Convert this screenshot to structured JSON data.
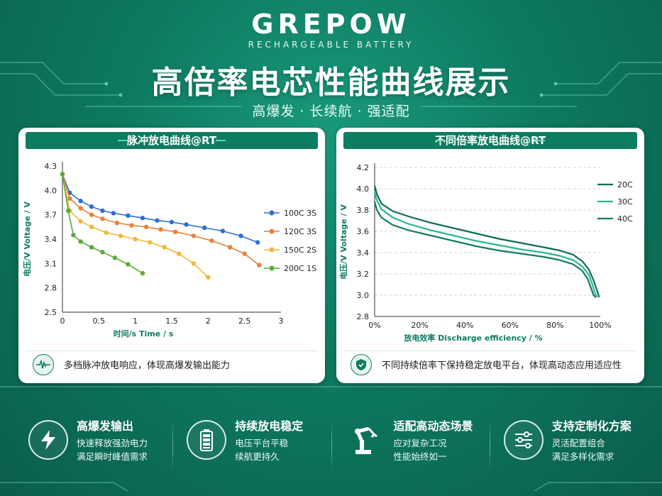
{
  "brand": {
    "name": "GREPOW",
    "tagline": "RECHARGEABLE BATTERY"
  },
  "title": "高倍率电芯性能曲线展示",
  "subtitle": "高爆发 · 长续航 · 强适配",
  "colors": {
    "primary": "#0e7c61",
    "background": "#0d7a60",
    "accent": "#6ad5b4"
  },
  "left_card": {
    "title": "脉冲放电曲线@RT",
    "footer_text": "多档脉冲放电响应，体现高爆发输出能力",
    "footer_icon": "pulse-waveform-icon"
  },
  "right_card": {
    "title": "不同倍率放电曲线@RT",
    "footer_text": "不同持续倍率下保持稳定放电平台，体现高动态应用适应性",
    "footer_icon": "shield-icon"
  },
  "chart_data": [
    {
      "type": "line",
      "xlabel": "时间/s   Time / s",
      "ylabel": "电压/V  Voltage / V",
      "xlim": [
        0,
        3
      ],
      "ylim": [
        2.5,
        4.3
      ],
      "xticks": [
        0,
        0.5,
        1,
        1.5,
        2,
        2.5,
        3
      ],
      "xtick_labels": [
        "0",
        "0.5",
        "1",
        "1.5",
        "2",
        "2.5",
        "3"
      ],
      "yticks": [
        2.5,
        2.8,
        3.1,
        3.4,
        3.7,
        4.0,
        4.3
      ],
      "ytick_labels": [
        "2.5",
        "2.8",
        "3.1",
        "3.4",
        "3.7",
        "4.0",
        "4.3"
      ],
      "grid": false,
      "legend_position": "right",
      "series": [
        {
          "name": "100C 3S",
          "color": "#2f6fd0",
          "x": [
            0,
            0.1,
            0.25,
            0.4,
            0.55,
            0.7,
            0.9,
            1.1,
            1.3,
            1.5,
            1.7,
            1.95,
            2.2,
            2.45,
            2.68
          ],
          "y": [
            4.2,
            3.97,
            3.87,
            3.8,
            3.75,
            3.72,
            3.69,
            3.66,
            3.63,
            3.61,
            3.58,
            3.54,
            3.5,
            3.44,
            3.36
          ]
        },
        {
          "name": "120C 3S",
          "color": "#e8803a",
          "x": [
            0,
            0.1,
            0.25,
            0.4,
            0.55,
            0.75,
            0.95,
            1.15,
            1.35,
            1.55,
            1.8,
            2.05,
            2.3,
            2.5,
            2.7
          ],
          "y": [
            4.2,
            3.9,
            3.78,
            3.7,
            3.65,
            3.6,
            3.57,
            3.55,
            3.52,
            3.49,
            3.44,
            3.38,
            3.3,
            3.22,
            3.08
          ]
        },
        {
          "name": "150C 2S",
          "color": "#f2b83a",
          "x": [
            0,
            0.1,
            0.25,
            0.4,
            0.6,
            0.8,
            1.0,
            1.2,
            1.4,
            1.6,
            1.8,
            2.0
          ],
          "y": [
            4.2,
            3.75,
            3.62,
            3.55,
            3.48,
            3.44,
            3.4,
            3.36,
            3.3,
            3.22,
            3.1,
            2.93
          ]
        },
        {
          "name": "200C 1S",
          "color": "#5aaa3a",
          "x": [
            0,
            0.08,
            0.15,
            0.25,
            0.4,
            0.55,
            0.72,
            0.9,
            1.1
          ],
          "y": [
            4.2,
            3.75,
            3.45,
            3.37,
            3.3,
            3.24,
            3.17,
            3.09,
            2.98
          ]
        }
      ]
    },
    {
      "type": "line",
      "xlabel": "放电效率  Discharge efficiency / %",
      "ylabel": "电压/V  Voltage / V",
      "xlim": [
        0,
        100
      ],
      "ylim": [
        2.8,
        4.2
      ],
      "xticks": [
        0,
        20,
        40,
        60,
        80,
        100
      ],
      "xtick_labels": [
        "0%",
        "20%",
        "40%",
        "60%",
        "80%",
        "100%"
      ],
      "yticks": [
        2.8,
        3.0,
        3.2,
        3.4,
        3.6,
        3.8,
        4.0,
        4.2
      ],
      "ytick_labels": [
        "2.8",
        "3.0",
        "3.2",
        "3.4",
        "3.6",
        "3.8",
        "4.0",
        "4.2"
      ],
      "grid": true,
      "legend_position": "top-right",
      "series": [
        {
          "name": "20C",
          "color": "#0f6b54",
          "x": [
            0,
            1,
            3,
            8,
            15,
            25,
            35,
            45,
            55,
            65,
            75,
            82,
            88,
            92,
            95,
            97,
            98.5,
            99.5
          ],
          "y": [
            4.03,
            3.95,
            3.86,
            3.79,
            3.74,
            3.68,
            3.63,
            3.58,
            3.53,
            3.49,
            3.45,
            3.42,
            3.38,
            3.32,
            3.24,
            3.14,
            3.05,
            2.98
          ]
        },
        {
          "name": "30C",
          "color": "#2bb495",
          "x": [
            0,
            1,
            3,
            8,
            15,
            25,
            35,
            45,
            55,
            65,
            75,
            82,
            88,
            92,
            95,
            96.5,
            97.5,
            98.5
          ],
          "y": [
            3.97,
            3.89,
            3.81,
            3.73,
            3.67,
            3.61,
            3.56,
            3.51,
            3.47,
            3.43,
            3.4,
            3.37,
            3.33,
            3.27,
            3.19,
            3.1,
            3.03,
            2.98
          ]
        },
        {
          "name": "40C",
          "color": "#137a5f",
          "x": [
            0,
            1,
            3,
            8,
            15,
            25,
            35,
            45,
            55,
            65,
            75,
            82,
            88,
            92,
            94.5,
            96,
            97,
            98
          ],
          "y": [
            3.88,
            3.8,
            3.73,
            3.66,
            3.61,
            3.56,
            3.51,
            3.46,
            3.42,
            3.39,
            3.36,
            3.33,
            3.29,
            3.23,
            3.15,
            3.06,
            3.0,
            2.98
          ]
        }
      ]
    }
  ],
  "features": [
    {
      "title": "高爆发输出",
      "line1": "快速释放强劲电力",
      "line2": "满足瞬时峰值需求",
      "icon": "lightning-icon"
    },
    {
      "title": "持续放电稳定",
      "line1": "电压平台平稳",
      "line2": "续航更持久",
      "icon": "battery-icon"
    },
    {
      "title": "适配高动态场景",
      "line1": "应对复杂工况",
      "line2": "性能始终如一",
      "icon": "robot-arm-icon"
    },
    {
      "title": "支持定制化方案",
      "line1": "灵活配置组合",
      "line2": "满足多样化需求",
      "icon": "sliders-icon"
    }
  ]
}
